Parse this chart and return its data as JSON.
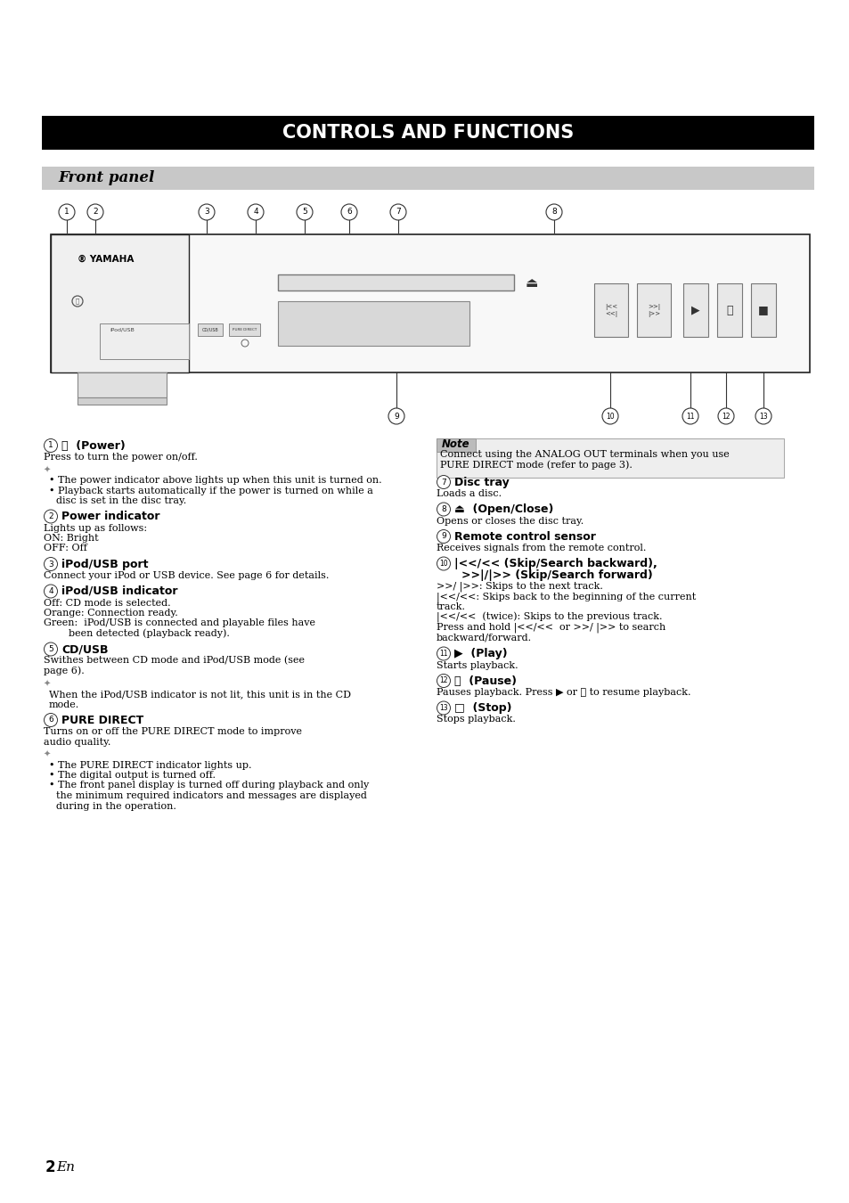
{
  "bg_color": "#ffffff",
  "title_bar_text": "CONTROLS AND FUNCTIONS",
  "title_bar_bg": "#000000",
  "title_bar_fg": "#ffffff",
  "section_bar_text": "Front panel",
  "section_bar_bg": "#c8c8c8",
  "page_number": "2",
  "page_suffix": " En"
}
